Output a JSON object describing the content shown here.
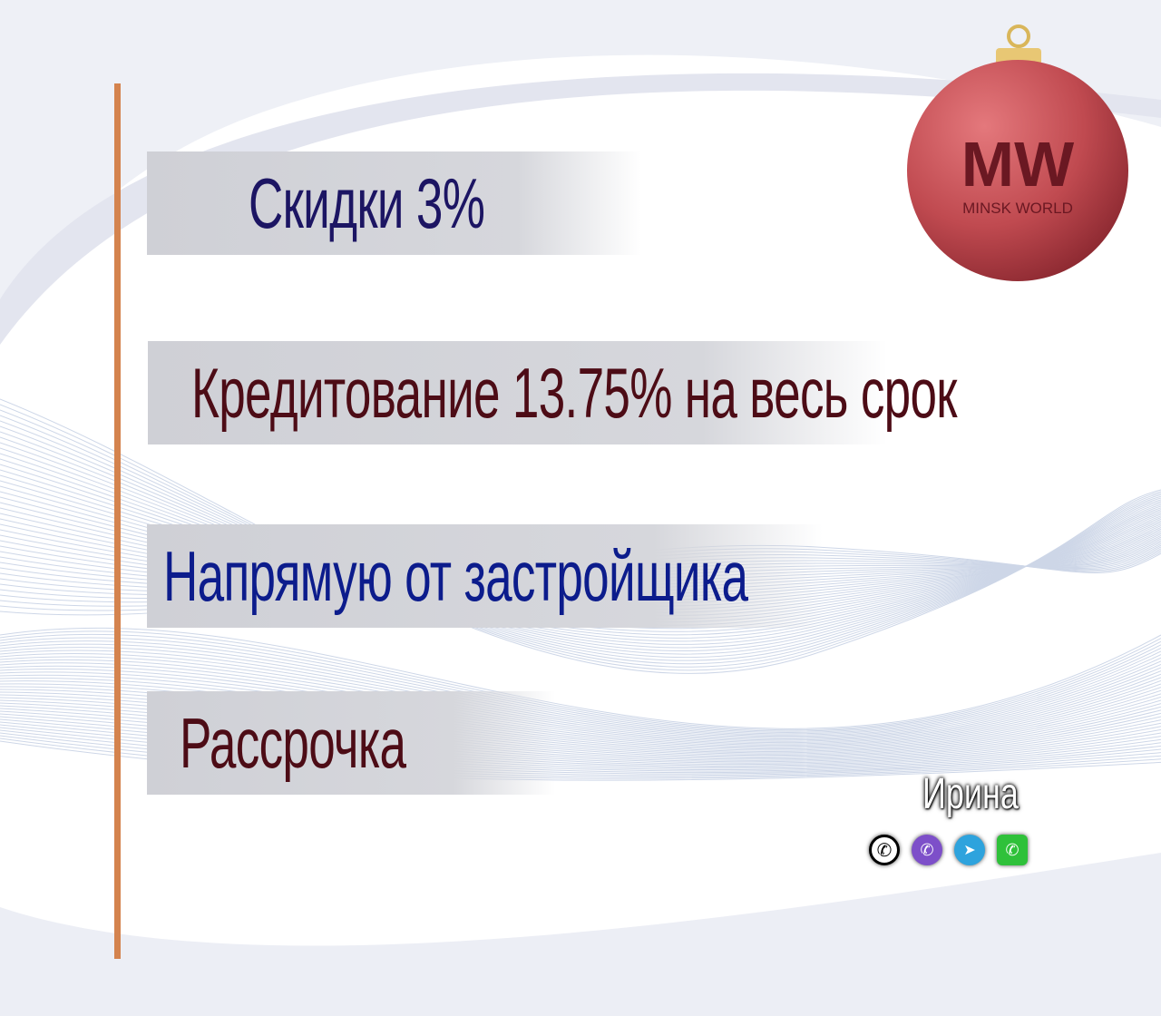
{
  "banners": [
    {
      "text": "Скидки 3%",
      "color": "#1c1563"
    },
    {
      "text": "Кредитование 13.75% на весь срок",
      "color": "#4d0c16"
    },
    {
      "text": "Напрямую от застройщика",
      "color": "#0c1c8c"
    },
    {
      "text": "Рассрочка",
      "color": "#4d0c16"
    }
  ],
  "logo": {
    "monogram": "MW",
    "brand": "MINSK WORLD"
  },
  "contact": {
    "name": "Ирина",
    "icons": [
      "phone-icon",
      "viber-icon",
      "telegram-icon",
      "whatsapp-icon"
    ]
  },
  "colors": {
    "accent_line": "#d4834e",
    "ornament": "#c04a50"
  }
}
